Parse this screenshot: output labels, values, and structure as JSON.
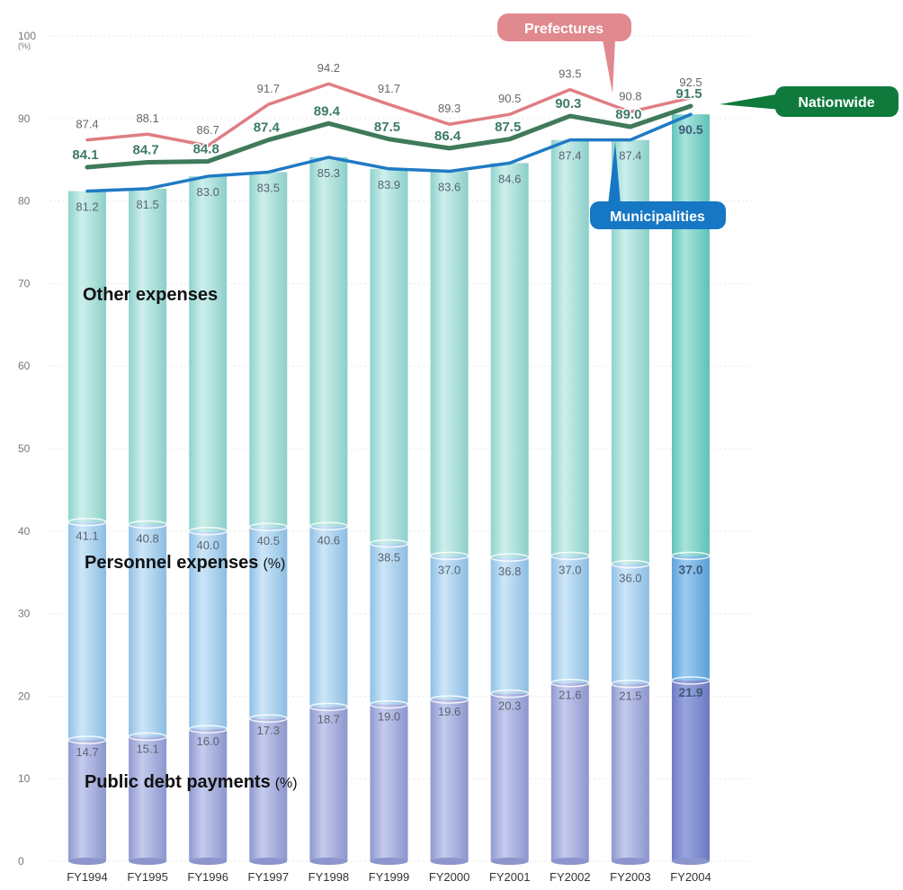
{
  "chart_data": {
    "type": "bar",
    "y_unit_label": "(%)",
    "yticks": [
      0,
      10,
      20,
      30,
      40,
      50,
      60,
      70,
      80,
      90,
      100
    ],
    "ylim": [
      0,
      100
    ],
    "grid": true,
    "categories": [
      "FY1994",
      "FY1995",
      "FY1996",
      "FY1997",
      "FY1998",
      "FY1999",
      "FY2000",
      "FY2001",
      "FY2002",
      "FY2003",
      "FY2004"
    ],
    "stacked_bars": {
      "public_debt_payments": [
        14.7,
        15.1,
        16.0,
        17.3,
        18.7,
        19.0,
        19.6,
        20.3,
        21.6,
        21.5,
        21.9
      ],
      "personnel_cumulative": [
        41.1,
        40.8,
        40.0,
        40.5,
        40.6,
        38.5,
        37.0,
        36.8,
        37.0,
        36.0,
        37.0
      ],
      "municipalities_total": [
        81.2,
        81.5,
        83.0,
        83.5,
        85.3,
        83.9,
        83.6,
        84.6,
        87.4,
        87.4,
        90.5
      ]
    },
    "series": [
      {
        "name": "Prefectures",
        "color": "#e07d83",
        "values": [
          87.4,
          88.1,
          86.7,
          91.7,
          94.2,
          91.7,
          89.3,
          90.5,
          93.5,
          90.8,
          92.5
        ]
      },
      {
        "name": "Nationwide",
        "color": "#3f7a5a",
        "values": [
          84.1,
          84.7,
          84.8,
          87.4,
          89.4,
          87.5,
          86.4,
          87.5,
          90.3,
          89.0,
          91.5
        ]
      },
      {
        "name": "Municipalities",
        "color": "#1f7ac4",
        "values": [
          81.2,
          81.5,
          83.0,
          83.5,
          85.3,
          83.9,
          83.6,
          84.6,
          87.4,
          87.4,
          90.5
        ]
      }
    ],
    "segment_labels": {
      "other": "Other expenses",
      "personnel": "Personnel expenses",
      "public_debt": "Public debt payments",
      "percent_suffix": "(%)"
    },
    "callouts": {
      "prefectures": "Prefectures",
      "nationwide": "Nationwide",
      "municipalities": "Municipalities"
    },
    "colors": {
      "debt_segment": "#a3acde",
      "personnel_segment": "#a9d2ee",
      "other_segment": "#a6ded8",
      "prefectures_callout": "#e0898e",
      "nationwide_callout": "#0f7a3c",
      "municipalities_callout": "#1677c4"
    }
  }
}
